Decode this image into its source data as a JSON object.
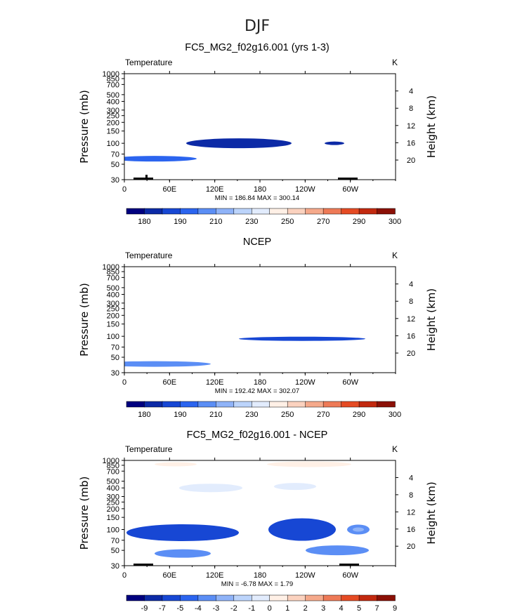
{
  "figure_title": "DJF",
  "colors": {
    "abs_scale": [
      "#00007f",
      "#0c2aa6",
      "#1747d4",
      "#2b64ef",
      "#5b8ef5",
      "#8fb3f8",
      "#bcd4fb",
      "#e2ecfd",
      "#fff0e6",
      "#fbd2bf",
      "#f5a98b",
      "#ee7a57",
      "#e54b24",
      "#c2290f",
      "#8b1006"
    ],
    "diff_scale": [
      "#00007f",
      "#0c2aa6",
      "#1747d4",
      "#2b64ef",
      "#5b8ef5",
      "#8fb3f8",
      "#bcd4fb",
      "#e2ecfd",
      "#fff0e6",
      "#fbd2bf",
      "#f5a98b",
      "#ee7a57",
      "#e54b24",
      "#c2290f",
      "#8b1006"
    ]
  },
  "chart_data": [
    {
      "type": "heatmap",
      "title": "FC5_MG2_f02g16.001 (yrs 1-3)",
      "field_label": "Temperature",
      "units": "K",
      "ylabel": "Pressure  (mb)",
      "ylabel_right": "Height  (km)",
      "x_ticks": [
        "0",
        "60E",
        "120E",
        "180",
        "120W",
        "60W"
      ],
      "y_ticks": [
        "30",
        "50",
        "70",
        "100",
        "150",
        "200",
        "250",
        "300",
        "400",
        "500",
        "700",
        "850",
        "1000"
      ],
      "y_ticks_right": [
        "20",
        "16",
        "12",
        "8",
        "4"
      ],
      "stats": "MIN =  186.84   MAX =  300.14",
      "colorbar_labels": [
        "180",
        "190",
        "210",
        "230",
        "250",
        "270",
        "290",
        "300"
      ],
      "ylim": [
        1000,
        30
      ],
      "xlim": [
        0,
        360
      ]
    },
    {
      "type": "heatmap",
      "title": "NCEP",
      "field_label": "Temperature",
      "units": "K",
      "ylabel": "Pressure  (mb)",
      "ylabel_right": "Height  (km)",
      "x_ticks": [
        "0",
        "60E",
        "120E",
        "180",
        "120W",
        "60W"
      ],
      "y_ticks": [
        "30",
        "50",
        "70",
        "100",
        "150",
        "200",
        "250",
        "300",
        "400",
        "500",
        "700",
        "850",
        "1000"
      ],
      "y_ticks_right": [
        "20",
        "16",
        "12",
        "8",
        "4"
      ],
      "stats": "MIN =  192.42   MAX =  302.07",
      "colorbar_labels": [
        "180",
        "190",
        "210",
        "230",
        "250",
        "270",
        "290",
        "300"
      ],
      "ylim": [
        1000,
        30
      ],
      "xlim": [
        0,
        360
      ]
    },
    {
      "type": "heatmap",
      "title": "FC5_MG2_f02g16.001 - NCEP",
      "field_label": "Temperature",
      "units": "K",
      "ylabel": "Pressure  (mb)",
      "ylabel_right": "Height  (km)",
      "x_ticks": [
        "0",
        "60E",
        "120E",
        "180",
        "120W",
        "60W"
      ],
      "y_ticks": [
        "30",
        "50",
        "70",
        "100",
        "150",
        "200",
        "250",
        "300",
        "400",
        "500",
        "700",
        "850",
        "1000"
      ],
      "y_ticks_right": [
        "20",
        "16",
        "12",
        "8",
        "4"
      ],
      "stats": "MIN =   -6.78   MAX =    1.79",
      "colorbar_labels": [
        "-9",
        "-7",
        "-5",
        "-4",
        "-3",
        "-2",
        "-1",
        "0",
        "1",
        "2",
        "3",
        "4",
        "5",
        "7",
        "9"
      ],
      "ylim": [
        1000,
        30
      ],
      "xlim": [
        0,
        360
      ]
    }
  ]
}
